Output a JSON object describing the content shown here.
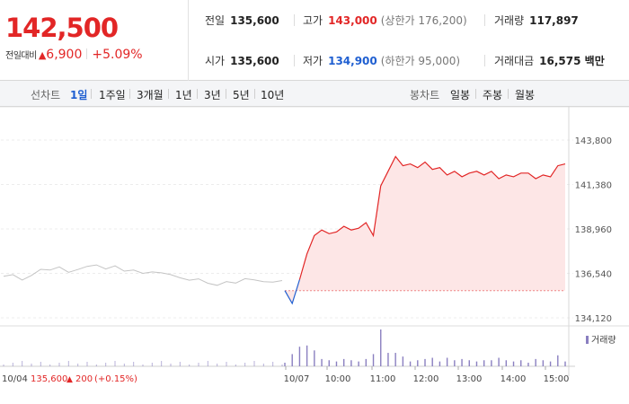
{
  "header": {
    "price": "142,500",
    "change_label": "전일대비",
    "change_arrow": "▲",
    "change_value": "6,900",
    "change_pct": "+5.09%",
    "stats": [
      [
        {
          "key": "전일",
          "value": "135,600",
          "value_color": "normal",
          "extra": ""
        },
        {
          "key": "고가",
          "value": "143,000",
          "value_color": "red",
          "extra": "(상한가 176,200)"
        },
        {
          "key": "거래량",
          "value": "117,897",
          "value_color": "normal",
          "extra": ""
        }
      ],
      [
        {
          "key": "시가",
          "value": "135,600",
          "value_color": "normal",
          "extra": ""
        },
        {
          "key": "저가",
          "value": "134,900",
          "value_color": "blue",
          "extra": "(하한가 95,000)"
        },
        {
          "key": "거래대금",
          "value": "16,575 백만",
          "value_color": "normal",
          "extra": ""
        }
      ]
    ]
  },
  "toolbar": {
    "line_label": "선차트",
    "line_periods": [
      "1일",
      "1주일",
      "3개월",
      "1년",
      "3년",
      "5년",
      "10년"
    ],
    "active_period": "1일",
    "candle_label": "봉차트",
    "candle_periods": [
      "일봉",
      "주봉",
      "월봉"
    ]
  },
  "colors": {
    "up": "#e22626",
    "down": "#1f5fd1",
    "fill": "#fde6e6",
    "prev_day_line": "#c4c4c4",
    "volume": "#8a7fc0"
  },
  "chart_data": {
    "type": "line",
    "y_ticks": [
      "143,800",
      "141,380",
      "138,960",
      "136,540",
      "134,120"
    ],
    "ylim": [
      134120,
      143800
    ],
    "x_ticks": [
      "10/07",
      "10:00",
      "11:00",
      "12:00",
      "13:00",
      "14:00",
      "15:00"
    ],
    "base_price": 135600,
    "prev_day_footer": {
      "date": "10/04",
      "close": "135,600",
      "arrow": "▲",
      "change": "200",
      "pct": "(+0.15%)"
    },
    "volume_legend": "거래량",
    "grid": true,
    "series": [
      {
        "role": "previous-day",
        "color": "#c4c4c4",
        "values": [
          136380,
          136470,
          136180,
          136430,
          136760,
          136720,
          136890,
          136600,
          136750,
          136920,
          137000,
          136780,
          136950,
          136660,
          136720,
          136540,
          136620,
          136570,
          136470,
          136300,
          136170,
          136240,
          136000,
          135890,
          136090,
          136010,
          136250,
          136190,
          136090,
          136060,
          136150
        ]
      },
      {
        "role": "today",
        "color": "#e22626",
        "values": [
          135600,
          134900,
          136200,
          137600,
          138600,
          138900,
          138700,
          138800,
          139100,
          138900,
          139000,
          139300,
          138600,
          141300,
          142100,
          142900,
          142400,
          142500,
          142300,
          142600,
          142200,
          142300,
          141900,
          142100,
          141800,
          142000,
          142100,
          141900,
          142100,
          141700,
          141900,
          141800,
          142000,
          142000,
          141700,
          141900,
          141800,
          142400,
          142500
        ]
      }
    ]
  }
}
